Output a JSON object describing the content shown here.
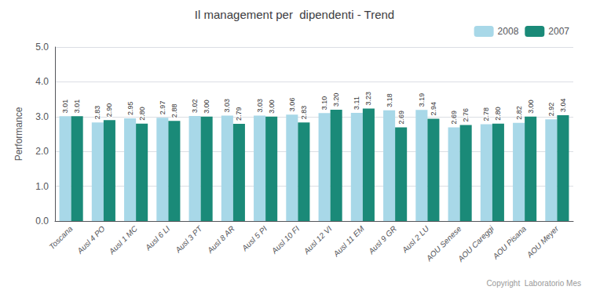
{
  "chart_data": {
    "type": "bar",
    "title": "Il management per  dipendenti - Trend",
    "ylabel": "Performance",
    "categories": [
      "Toscana",
      "Ausl 4 PO",
      "Ausl 1 MC",
      "Ausl 6 LI",
      "Ausl 3 PT",
      "Ausl 8 AR",
      "Ausl 5 PI",
      "Ausl 10 FI",
      "Ausl 12 VI",
      "Ausl 11 EM",
      "Ausl 9 GR",
      "Ausl 2 LU",
      "AOU Senese",
      "AOU Careggi",
      "AOU Pisana",
      "AOU Meyer"
    ],
    "series": [
      {
        "name": "2008",
        "color": "#a8d8e8",
        "values": [
          3.01,
          2.83,
          2.95,
          2.97,
          3.02,
          3.03,
          3.03,
          3.06,
          3.1,
          3.11,
          3.18,
          3.19,
          2.69,
          2.78,
          2.82,
          2.92
        ],
        "value_labels": [
          "3.01",
          "2.83",
          "2.95",
          "2.97",
          "3.02",
          "3.03",
          "3.03",
          "3.06",
          "3.10",
          "3.11",
          "3.18",
          "3.19",
          "2.69",
          "2.78",
          "2.82",
          "2.92"
        ]
      },
      {
        "name": "2007",
        "color": "#1a8a78",
        "values": [
          3.01,
          2.9,
          2.8,
          2.88,
          3.0,
          2.79,
          3.0,
          2.83,
          3.2,
          3.23,
          2.69,
          2.94,
          2.76,
          2.8,
          3.0,
          3.04
        ],
        "value_labels": [
          "3.01",
          "2.90",
          "2.80",
          "2.88",
          "3.00",
          "2.79",
          "3.00",
          "2.83",
          "3.20",
          "3.23",
          "2.69",
          "2.94",
          "2.76",
          "2.80",
          "3.00",
          "3.04"
        ]
      }
    ],
    "ylim": [
      0,
      5.0
    ],
    "yticks": [
      {
        "value": 0,
        "label": "0.0"
      },
      {
        "value": 1,
        "label": "1.0"
      },
      {
        "value": 2,
        "label": "2.0"
      },
      {
        "value": 3,
        "label": "3.0"
      },
      {
        "value": 4,
        "label": "4.0"
      },
      {
        "value": 5,
        "label": "5.0"
      }
    ],
    "grid": true,
    "legend": "top",
    "data_labels": true,
    "annotations": [
      "Copyright  Laboratorio Mes"
    ]
  }
}
